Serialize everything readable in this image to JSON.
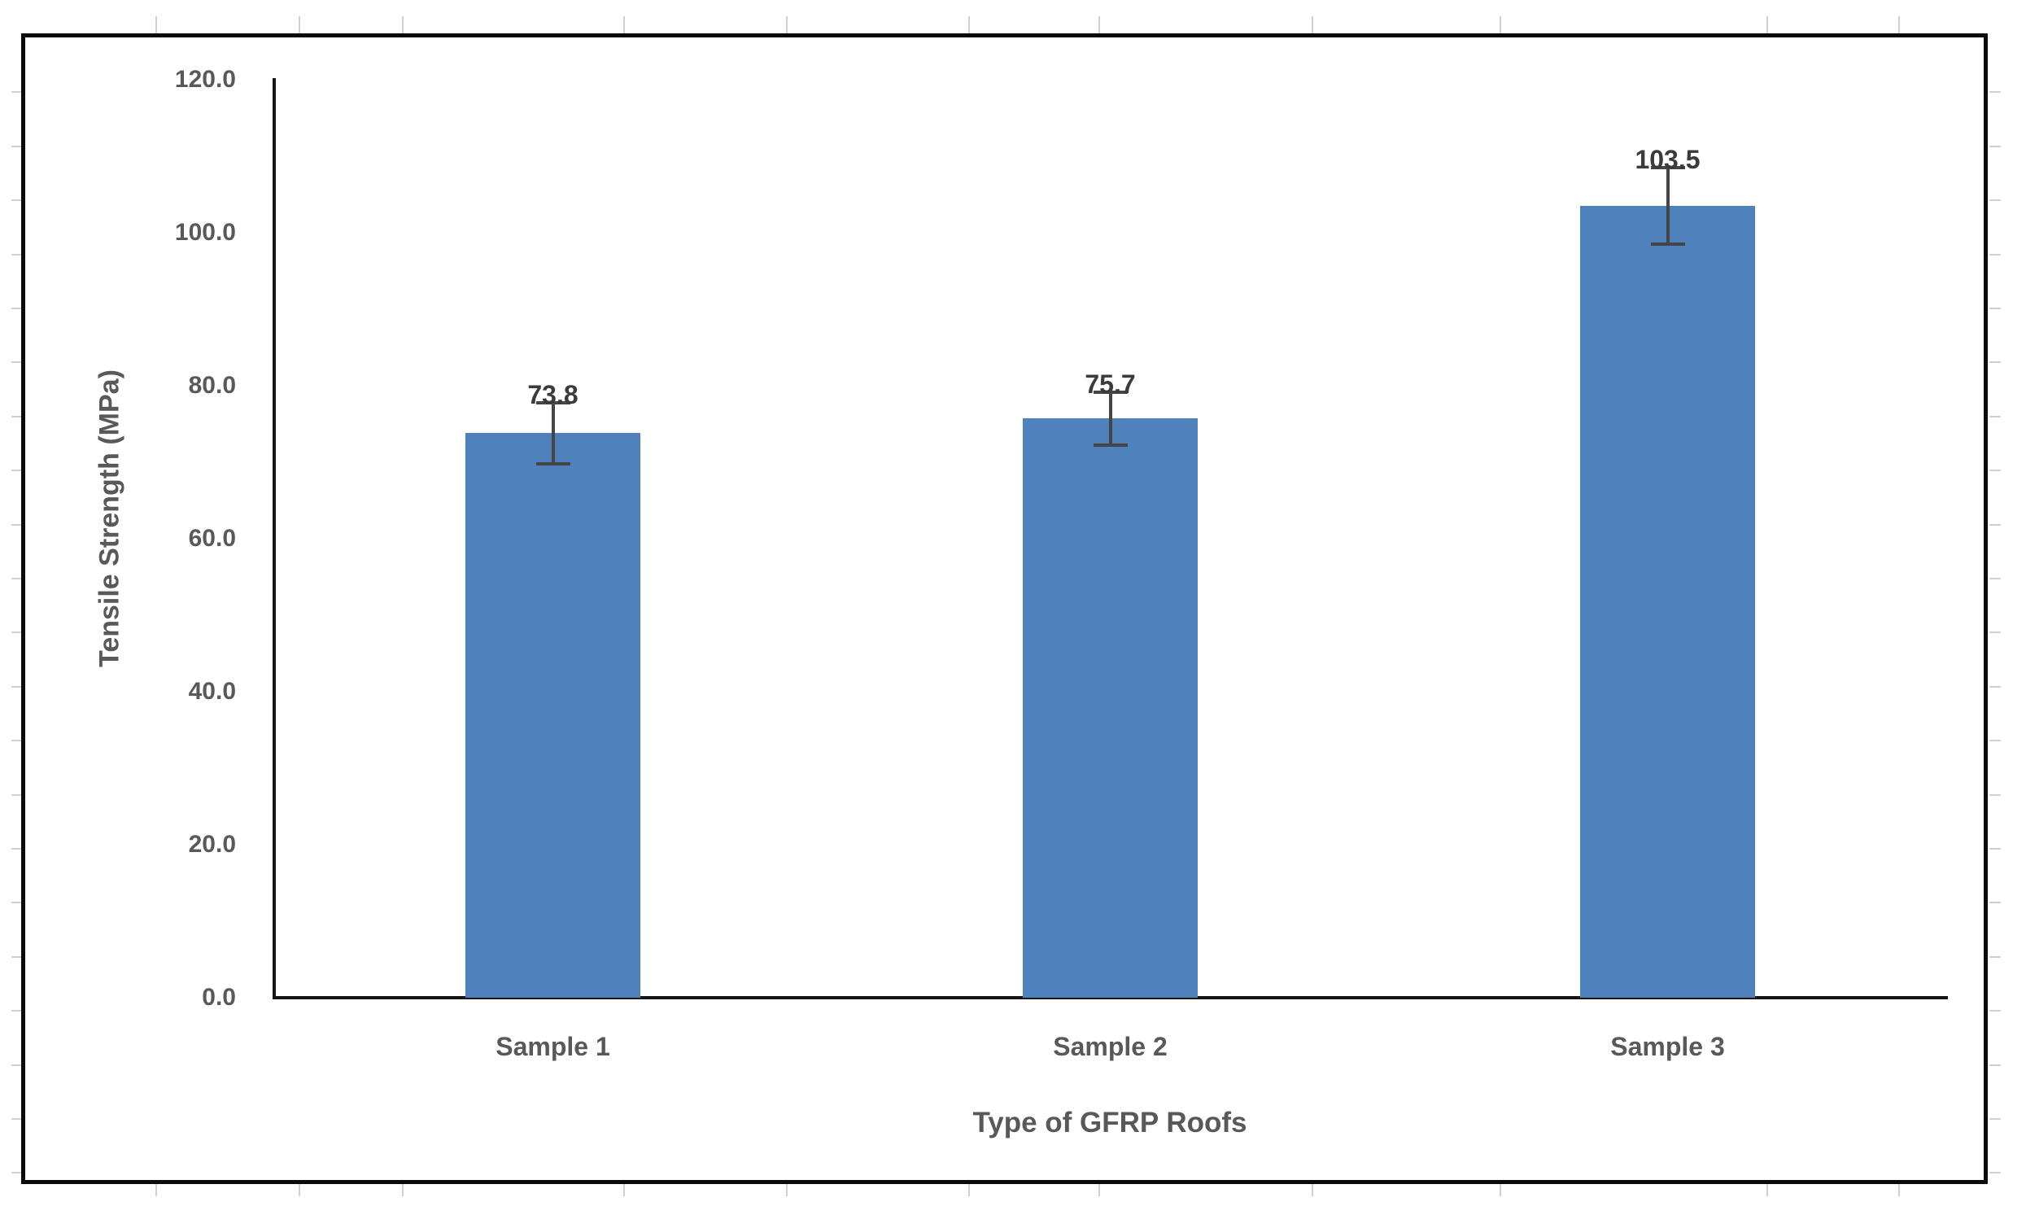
{
  "chart_data": {
    "type": "bar",
    "categories": [
      "Sample 1",
      "Sample 2",
      "Sample 3"
    ],
    "values": [
      73.8,
      75.7,
      103.5
    ],
    "value_labels": [
      "73.8",
      "75.7",
      "103.5"
    ],
    "error_bars": {
      "plus": [
        4.0,
        3.5,
        5.0
      ],
      "minus": [
        4.0,
        3.5,
        5.0
      ]
    },
    "xlabel": "Type of GFRP Roofs",
    "ylabel": "Tensile Strength (MPa)",
    "ylim": [
      0,
      120
    ],
    "ytick_step": 20,
    "ytick_labels": [
      "0.0",
      "20.0",
      "40.0",
      "60.0",
      "80.0",
      "100.0",
      "120.0"
    ],
    "grid": false,
    "legend": false,
    "colors": {
      "bar": "#4F81BD",
      "error_bar": "#454545",
      "axis_line": "#151515",
      "tick_label": "#595959",
      "axis_title": "#595959",
      "value_label": "#3b3b3b",
      "chart_border": "#0b0b0b",
      "sheet_gridline": "#d0d0d0",
      "background": "#ffffff"
    }
  }
}
